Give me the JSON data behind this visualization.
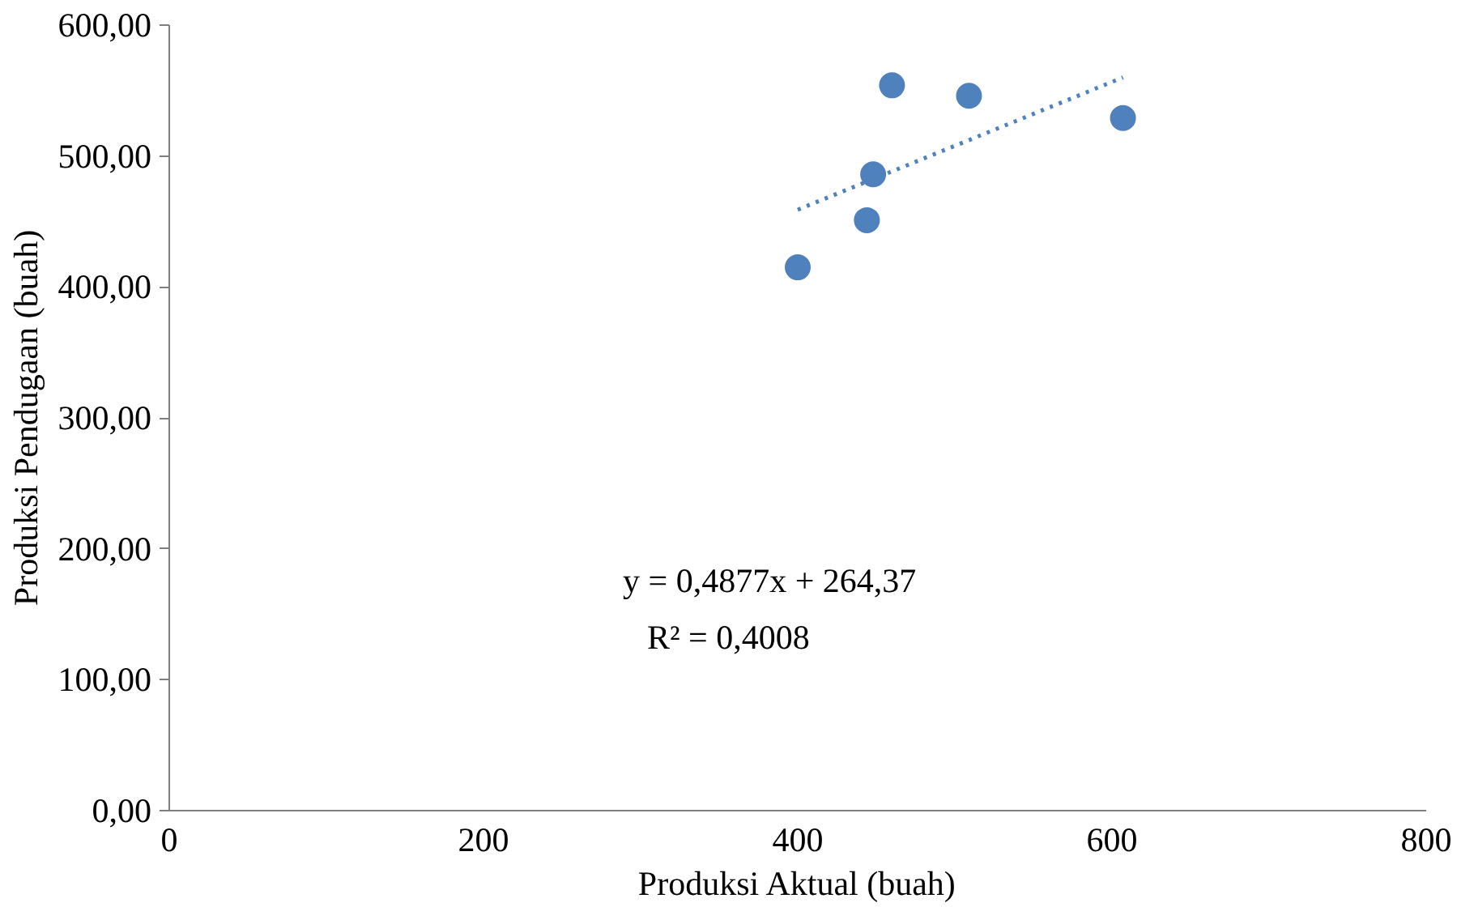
{
  "chart_data": {
    "type": "scatter",
    "xlabel": "Produksi Aktual (buah)",
    "ylabel": "Produksi Pendugaan (buah)",
    "xlim": [
      0,
      800
    ],
    "xticks": [
      0,
      200,
      400,
      600,
      800
    ],
    "ylim": [
      0,
      600
    ],
    "yticks": [
      {
        "value": 0,
        "label": "0,00"
      },
      {
        "value": 100,
        "label": "100,00"
      },
      {
        "value": 200,
        "label": "200,00"
      },
      {
        "value": 300,
        "label": "300,00"
      },
      {
        "value": 400,
        "label": "400,00"
      },
      {
        "value": 500,
        "label": "500,00"
      },
      {
        "value": 600,
        "label": "600,00"
      }
    ],
    "grid": false,
    "marker": "circle",
    "annotations": [
      "y = 0,4877x + 264,37",
      "R² = 0,4008"
    ],
    "series": [
      {
        "color": "#4f81bd",
        "x": [
          400,
          444,
          448,
          460,
          509,
          607
        ],
        "values": [
          415,
          451,
          486,
          554,
          546,
          529
        ]
      },
      {
        "type": "line",
        "line_style": "dotted",
        "marker": "none",
        "color": "#4f81bd",
        "x": [
          400,
          607
        ],
        "values": [
          459,
          560
        ]
      }
    ]
  }
}
